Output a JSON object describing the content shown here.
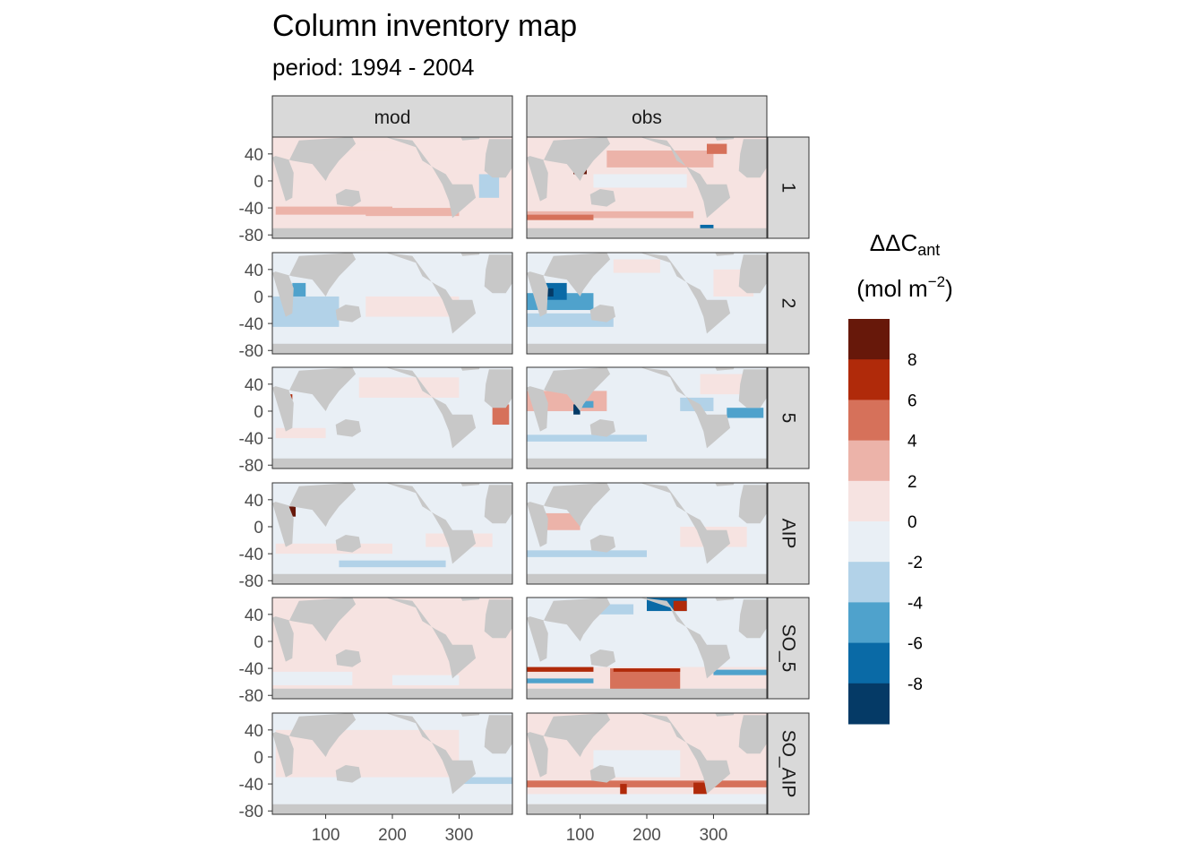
{
  "chart_data": {
    "type": "heatmap",
    "title": "Column inventory map",
    "subtitle": "period: 1994 - 2004",
    "facet_cols": [
      "mod",
      "obs"
    ],
    "facet_rows": [
      "1",
      "2",
      "5",
      "AIP",
      "SO_5",
      "SO_AIP"
    ],
    "x_ticks": [
      100,
      200,
      300
    ],
    "y_ticks": [
      40,
      0,
      -40,
      -80
    ],
    "xlim": [
      20,
      380
    ],
    "ylim": [
      -85,
      65
    ],
    "legend": {
      "title_main": "ΔΔC",
      "title_sub": "ant",
      "unit_main": "(mol m",
      "unit_sup": "−2",
      "unit_close": ")",
      "placement": "right",
      "bins": [
        {
          "from": 8,
          "to": 10,
          "color": "#67180a"
        },
        {
          "from": 6,
          "to": 8,
          "color": "#b02a0a"
        },
        {
          "from": 4,
          "to": 6,
          "color": "#d6715a"
        },
        {
          "from": 2,
          "to": 4,
          "color": "#ecb3a9"
        },
        {
          "from": 0,
          "to": 2,
          "color": "#f6e3e1"
        },
        {
          "from": -2,
          "to": 0,
          "color": "#e9eff5"
        },
        {
          "from": -4,
          "to": -2,
          "color": "#b2d2e8"
        },
        {
          "from": -6,
          "to": -4,
          "color": "#4fa2cc"
        },
        {
          "from": -8,
          "to": -6,
          "color": "#0a6aa6"
        },
        {
          "from": -10,
          "to": -8,
          "color": "#053a66"
        }
      ],
      "labels": [
        "8",
        "6",
        "4",
        "2",
        "0",
        "-2",
        "-4",
        "-6",
        "-8"
      ]
    },
    "panels": [
      {
        "row": "1",
        "col": "mod",
        "base": "pos",
        "patches": [
          {
            "lon": [
              25,
              200
            ],
            "lat": [
              -50,
              -38
            ],
            "v": 3
          },
          {
            "lon": [
              160,
              300
            ],
            "lat": [
              -52,
              -40
            ],
            "v": 3
          },
          {
            "lon": [
              40,
              200
            ],
            "lat": [
              20,
              45
            ],
            "v": 1
          },
          {
            "lon": [
              330,
              360
            ],
            "lat": [
              -25,
              10
            ],
            "v": -3
          }
        ]
      },
      {
        "row": "1",
        "col": "obs",
        "base": "pos",
        "patches": [
          {
            "lon": [
              20,
              270
            ],
            "lat": [
              -55,
              -45
            ],
            "v": 3
          },
          {
            "lon": [
              20,
              120
            ],
            "lat": [
              -58,
              -50
            ],
            "v": 5
          },
          {
            "lon": [
              90,
              110
            ],
            "lat": [
              10,
              30
            ],
            "v": 9
          },
          {
            "lon": [
              140,
              300
            ],
            "lat": [
              20,
              45
            ],
            "v": 3
          },
          {
            "lon": [
              120,
              260
            ],
            "lat": [
              -10,
              10
            ],
            "v": -1
          },
          {
            "lon": [
              290,
              320
            ],
            "lat": [
              40,
              55
            ],
            "v": 5
          },
          {
            "lon": [
              280,
              300
            ],
            "lat": [
              -75,
              -65
            ],
            "v": -7
          }
        ]
      },
      {
        "row": "2",
        "col": "mod",
        "base": "neg",
        "patches": [
          {
            "lon": [
              20,
              120
            ],
            "lat": [
              -45,
              0
            ],
            "v": -3
          },
          {
            "lon": [
              50,
              70
            ],
            "lat": [
              0,
              20
            ],
            "v": -5
          },
          {
            "lon": [
              40,
              50
            ],
            "lat": [
              -5,
              5
            ],
            "v": -9
          },
          {
            "lon": [
              160,
              300
            ],
            "lat": [
              -30,
              0
            ],
            "v": 1
          }
        ]
      },
      {
        "row": "2",
        "col": "obs",
        "base": "neg",
        "patches": [
          {
            "lon": [
              20,
              120
            ],
            "lat": [
              -20,
              5
            ],
            "v": -5
          },
          {
            "lon": [
              40,
              80
            ],
            "lat": [
              -5,
              20
            ],
            "v": -7
          },
          {
            "lon": [
              50,
              60
            ],
            "lat": [
              0,
              12
            ],
            "v": -9
          },
          {
            "lon": [
              20,
              150
            ],
            "lat": [
              -45,
              -25
            ],
            "v": -3
          },
          {
            "lon": [
              300,
              360
            ],
            "lat": [
              0,
              40
            ],
            "v": 1
          },
          {
            "lon": [
              150,
              220
            ],
            "lat": [
              35,
              55
            ],
            "v": 1
          }
        ]
      },
      {
        "row": "5",
        "col": "mod",
        "base": "neg",
        "patches": [
          {
            "lon": [
              25,
              100
            ],
            "lat": [
              -40,
              -25
            ],
            "v": 1
          },
          {
            "lon": [
              150,
              300
            ],
            "lat": [
              20,
              50
            ],
            "v": 1
          },
          {
            "lon": [
              350,
              375
            ],
            "lat": [
              -20,
              10
            ],
            "v": 4
          },
          {
            "lon": [
              40,
              50
            ],
            "lat": [
              15,
              25
            ],
            "v": 6
          }
        ]
      },
      {
        "row": "5",
        "col": "obs",
        "base": "neg",
        "patches": [
          {
            "lon": [
              20,
              140
            ],
            "lat": [
              0,
              30
            ],
            "v": 3
          },
          {
            "lon": [
              90,
              100
            ],
            "lat": [
              -5,
              10
            ],
            "v": -9
          },
          {
            "lon": [
              100,
              120
            ],
            "lat": [
              5,
              15
            ],
            "v": -5
          },
          {
            "lon": [
              320,
              375
            ],
            "lat": [
              -10,
              5
            ],
            "v": -6
          },
          {
            "lon": [
              250,
              300
            ],
            "lat": [
              0,
              20
            ],
            "v": -3
          },
          {
            "lon": [
              150,
              300
            ],
            "lat": [
              -78,
              -72
            ],
            "v": 6
          },
          {
            "lon": [
              280,
              380
            ],
            "lat": [
              25,
              55
            ],
            "v": 1
          },
          {
            "lon": [
              20,
              200
            ],
            "lat": [
              -45,
              -35
            ],
            "v": -3
          }
        ]
      },
      {
        "row": "AIP",
        "col": "mod",
        "base": "neg",
        "patches": [
          {
            "lon": [
              25,
              200
            ],
            "lat": [
              -40,
              -25
            ],
            "v": 1
          },
          {
            "lon": [
              250,
              350
            ],
            "lat": [
              -30,
              -10
            ],
            "v": 1
          },
          {
            "lon": [
              40,
              55
            ],
            "lat": [
              15,
              30
            ],
            "v": 8
          },
          {
            "lon": [
              120,
              280
            ],
            "lat": [
              -60,
              -50
            ],
            "v": -3
          }
        ]
      },
      {
        "row": "AIP",
        "col": "obs",
        "base": "neg",
        "patches": [
          {
            "lon": [
              40,
              100
            ],
            "lat": [
              -5,
              20
            ],
            "v": 3
          },
          {
            "lon": [
              20,
              200
            ],
            "lat": [
              -45,
              -35
            ],
            "v": -3
          },
          {
            "lon": [
              20,
              150
            ],
            "lat": [
              -60,
              -48
            ],
            "v": -2
          },
          {
            "lon": [
              250,
              350
            ],
            "lat": [
              -30,
              0
            ],
            "v": 1
          }
        ]
      },
      {
        "row": "SO_5",
        "col": "mod",
        "base": "pos",
        "patches": [
          {
            "lon": [
              20,
              140
            ],
            "lat": [
              -65,
              -45
            ],
            "v": -1
          },
          {
            "lon": [
              200,
              300
            ],
            "lat": [
              -65,
              -50
            ],
            "v": -1
          },
          {
            "lon": [
              40,
              50
            ],
            "lat": [
              5,
              15
            ],
            "v": -7
          }
        ]
      },
      {
        "row": "SO_5",
        "col": "obs",
        "base": "neg",
        "patches": [
          {
            "lon": [
              20,
              380
            ],
            "lat": [
              -70,
              -38
            ],
            "v": 1
          },
          {
            "lon": [
              145,
              250
            ],
            "lat": [
              -75,
              -40
            ],
            "v": 4
          },
          {
            "lon": [
              150,
              250
            ],
            "lat": [
              -45,
              -40
            ],
            "v": 7
          },
          {
            "lon": [
              20,
              120
            ],
            "lat": [
              -45,
              -38
            ],
            "v": 6
          },
          {
            "lon": [
              20,
              120
            ],
            "lat": [
              -62,
              -55
            ],
            "v": -5
          },
          {
            "lon": [
              200,
              260
            ],
            "lat": [
              45,
              65
            ],
            "v": -7
          },
          {
            "lon": [
              100,
              180
            ],
            "lat": [
              40,
              55
            ],
            "v": -3
          },
          {
            "lon": [
              240,
              260
            ],
            "lat": [
              45,
              60
            ],
            "v": 7
          },
          {
            "lon": [
              300,
              380
            ],
            "lat": [
              -50,
              -42
            ],
            "v": -5
          }
        ]
      },
      {
        "row": "SO_AIP",
        "col": "mod",
        "base": "neg",
        "patches": [
          {
            "lon": [
              25,
              300
            ],
            "lat": [
              -30,
              40
            ],
            "v": 1
          },
          {
            "lon": [
              300,
              380
            ],
            "lat": [
              -40,
              -30
            ],
            "v": -3
          },
          {
            "lon": [
              40,
              50
            ],
            "lat": [
              0,
              12
            ],
            "v": -7
          }
        ]
      },
      {
        "row": "SO_AIP",
        "col": "obs",
        "base": "pos",
        "patches": [
          {
            "lon": [
              20,
              380
            ],
            "lat": [
              -45,
              -35
            ],
            "v": 4
          },
          {
            "lon": [
              160,
              170
            ],
            "lat": [
              -60,
              -40
            ],
            "v": 7
          },
          {
            "lon": [
              270,
              290
            ],
            "lat": [
              -55,
              -38
            ],
            "v": 7
          },
          {
            "lon": [
              20,
              380
            ],
            "lat": [
              -70,
              -55
            ],
            "v": -1
          },
          {
            "lon": [
              120,
              250
            ],
            "lat": [
              -30,
              10
            ],
            "v": -1
          }
        ]
      }
    ]
  }
}
